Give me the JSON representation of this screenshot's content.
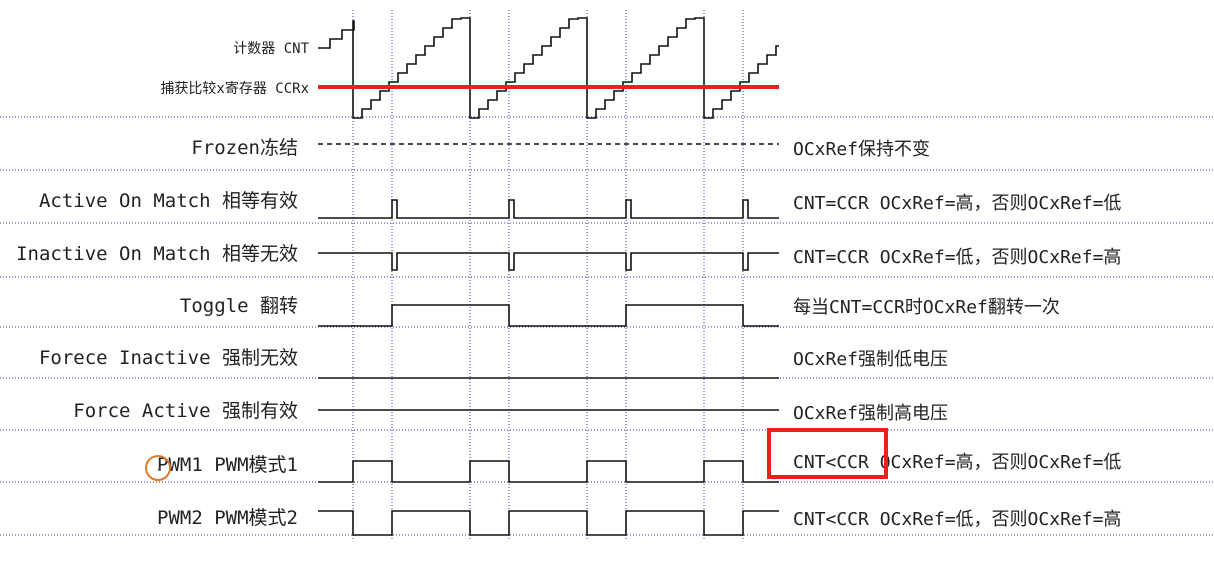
{
  "counter": {
    "cnt_label": "计数器 CNT",
    "ccr_label": "捕获比较x寄存器 CCRx"
  },
  "colors": {
    "ccr_line": "#e8211c",
    "divider": "#3a3aa8",
    "waveform": "#111111",
    "highlight_box": "#e8211c"
  },
  "modes": [
    {
      "label": "Frozen冻结",
      "description": "OCxRef保持不变",
      "waveform": "frozen"
    },
    {
      "label": "Active On Match 相等有效",
      "description": "CNT=CCR OCxRef=高，否则OCxRef=低",
      "waveform": "active_on_match"
    },
    {
      "label": "Inactive On Match 相等无效",
      "description": "CNT=CCR OCxRef=低，否则OCxRef=高",
      "waveform": "inactive_on_match"
    },
    {
      "label": "Toggle 翻转",
      "description": "每当CNT=CCR时OCxRef翻转一次",
      "waveform": "toggle"
    },
    {
      "label": "Forece Inactive 强制无效",
      "description": "OCxRef强制低电压",
      "waveform": "force_low"
    },
    {
      "label": "Force Active 强制有效",
      "description": "OCxRef强制高电压",
      "waveform": "force_high"
    },
    {
      "label": "PWM1 PWM模式1",
      "description": "CNT<CCR OCxRef=高，否则OCxRef=低",
      "waveform": "pwm1"
    },
    {
      "label": "PWM2 PWM模式2",
      "description": "CNT<CCR OCxRef=低，否则OCxRef=高",
      "waveform": "pwm2"
    }
  ],
  "highlight": {
    "target": "PWM1 description",
    "text": "CNT<CCR"
  }
}
